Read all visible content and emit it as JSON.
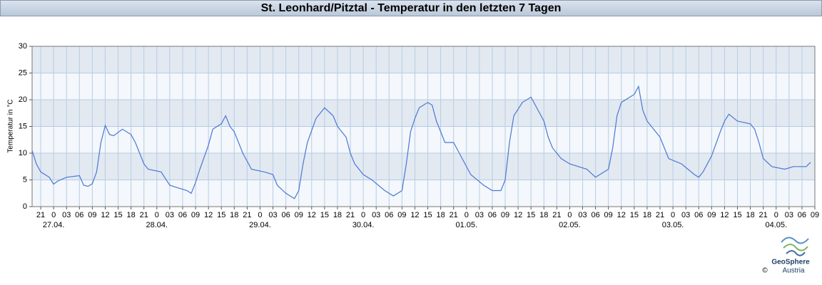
{
  "chart_data": {
    "type": "line",
    "title": "St. Leonhard/Pitztal - Temperatur in den letzten 7 Tagen",
    "y_label": "Temperatur in °C",
    "xlim": [
      -5,
      177
    ],
    "ylim": [
      0,
      30
    ],
    "yticks": [
      0,
      5,
      10,
      15,
      20,
      25,
      30
    ],
    "xticks": [
      {
        "value": -3,
        "label": "21"
      },
      {
        "value": 0,
        "label": "0"
      },
      {
        "value": 3,
        "label": "03"
      },
      {
        "value": 6,
        "label": "06"
      },
      {
        "value": 9,
        "label": "09"
      },
      {
        "value": 12,
        "label": "12"
      },
      {
        "value": 15,
        "label": "15"
      },
      {
        "value": 18,
        "label": "18"
      },
      {
        "value": 21,
        "label": "21"
      },
      {
        "value": 24,
        "label": "0"
      },
      {
        "value": 27,
        "label": "03"
      },
      {
        "value": 30,
        "label": "06"
      },
      {
        "value": 33,
        "label": "09"
      },
      {
        "value": 36,
        "label": "12"
      },
      {
        "value": 39,
        "label": "15"
      },
      {
        "value": 42,
        "label": "18"
      },
      {
        "value": 45,
        "label": "21"
      },
      {
        "value": 48,
        "label": "0"
      },
      {
        "value": 51,
        "label": "03"
      },
      {
        "value": 54,
        "label": "06"
      },
      {
        "value": 57,
        "label": "09"
      },
      {
        "value": 60,
        "label": "12"
      },
      {
        "value": 63,
        "label": "15"
      },
      {
        "value": 66,
        "label": "18"
      },
      {
        "value": 69,
        "label": "21"
      },
      {
        "value": 72,
        "label": "0"
      },
      {
        "value": 75,
        "label": "03"
      },
      {
        "value": 78,
        "label": "06"
      },
      {
        "value": 81,
        "label": "09"
      },
      {
        "value": 84,
        "label": "12"
      },
      {
        "value": 87,
        "label": "15"
      },
      {
        "value": 90,
        "label": "18"
      },
      {
        "value": 93,
        "label": "21"
      },
      {
        "value": 96,
        "label": "0"
      },
      {
        "value": 99,
        "label": "03"
      },
      {
        "value": 102,
        "label": "06"
      },
      {
        "value": 105,
        "label": "09"
      },
      {
        "value": 108,
        "label": "12"
      },
      {
        "value": 111,
        "label": "15"
      },
      {
        "value": 114,
        "label": "18"
      },
      {
        "value": 117,
        "label": "21"
      },
      {
        "value": 120,
        "label": "0"
      },
      {
        "value": 123,
        "label": "03"
      },
      {
        "value": 126,
        "label": "06"
      },
      {
        "value": 129,
        "label": "09"
      },
      {
        "value": 132,
        "label": "12"
      },
      {
        "value": 135,
        "label": "15"
      },
      {
        "value": 138,
        "label": "18"
      },
      {
        "value": 141,
        "label": "21"
      },
      {
        "value": 144,
        "label": "0"
      },
      {
        "value": 147,
        "label": "03"
      },
      {
        "value": 150,
        "label": "06"
      },
      {
        "value": 153,
        "label": "09"
      },
      {
        "value": 156,
        "label": "12"
      },
      {
        "value": 159,
        "label": "15"
      },
      {
        "value": 162,
        "label": "18"
      },
      {
        "value": 165,
        "label": "21"
      },
      {
        "value": 168,
        "label": "0"
      },
      {
        "value": 171,
        "label": "03"
      },
      {
        "value": 174,
        "label": "06"
      },
      {
        "value": 177,
        "label": "09"
      }
    ],
    "date_labels": [
      {
        "value": 0,
        "label": "27.04."
      },
      {
        "value": 24,
        "label": "28.04."
      },
      {
        "value": 48,
        "label": "29.04."
      },
      {
        "value": 72,
        "label": "30.04."
      },
      {
        "value": 96,
        "label": "01.05."
      },
      {
        "value": 120,
        "label": "02.05."
      },
      {
        "value": 144,
        "label": "03.05."
      },
      {
        "value": 168,
        "label": "04.05."
      }
    ],
    "grid": true,
    "band_colors": [
      "#f4f7fb",
      "#e3e9f1"
    ],
    "x": [
      -5,
      -4,
      -3,
      -1,
      0,
      1,
      3,
      6,
      7,
      8,
      9,
      10,
      11,
      12,
      13,
      14,
      16,
      18,
      19,
      20,
      21,
      22,
      25,
      27,
      29,
      31,
      32,
      33,
      34,
      36,
      37,
      39,
      40,
      41,
      42,
      44,
      46,
      49,
      51,
      52,
      54,
      56,
      57,
      58,
      59,
      61,
      63,
      65,
      66,
      68,
      69,
      70,
      72,
      74,
      77,
      79,
      81,
      82,
      83,
      84,
      85,
      87,
      88,
      89,
      90,
      91,
      93,
      95,
      97,
      100,
      102,
      104,
      105,
      106,
      107,
      109,
      111,
      112,
      114,
      115,
      116,
      118,
      120,
      124,
      126,
      127,
      129,
      130,
      131,
      132,
      134,
      135,
      136,
      137,
      138,
      140,
      141,
      143,
      146,
      149,
      150,
      151,
      153,
      155,
      156,
      157,
      159,
      162,
      163,
      164,
      165,
      167,
      170,
      172,
      175,
      176
    ],
    "series": [
      {
        "color": "#4a78d4",
        "values": [
          10.5,
          8,
          6.5,
          5.5,
          4.2,
          4.8,
          5.5,
          5.8,
          4,
          3.8,
          4.3,
          6.5,
          12,
          15.2,
          13.5,
          13.3,
          14.5,
          13.5,
          12,
          10,
          8,
          7,
          6.5,
          4,
          3.5,
          3,
          2.5,
          4.5,
          7,
          11.5,
          14.5,
          15.5,
          17,
          15,
          14,
          10,
          7,
          6.5,
          6,
          4,
          2.5,
          1.5,
          3,
          8,
          12,
          16.5,
          18.5,
          17,
          15,
          13,
          10,
          8,
          6,
          5,
          3,
          2,
          3,
          8,
          14,
          16.5,
          18.5,
          19.5,
          19,
          16,
          14,
          12,
          12,
          9,
          6,
          4,
          3,
          3,
          5,
          12,
          17,
          19.5,
          20.5,
          19,
          16,
          13,
          11,
          9,
          8,
          7,
          5.5,
          6,
          7,
          11,
          17,
          19.5,
          20.5,
          21,
          22.5,
          18,
          16,
          14,
          13,
          9,
          8,
          6,
          5.5,
          6.5,
          9.5,
          14,
          16,
          17.3,
          16,
          15.5,
          14.5,
          12,
          9,
          7.5,
          7,
          7.5,
          7.5,
          8.3
        ]
      }
    ]
  },
  "footer": {
    "brand": "GeoSphere",
    "country": "Austria",
    "copyright": "©"
  }
}
